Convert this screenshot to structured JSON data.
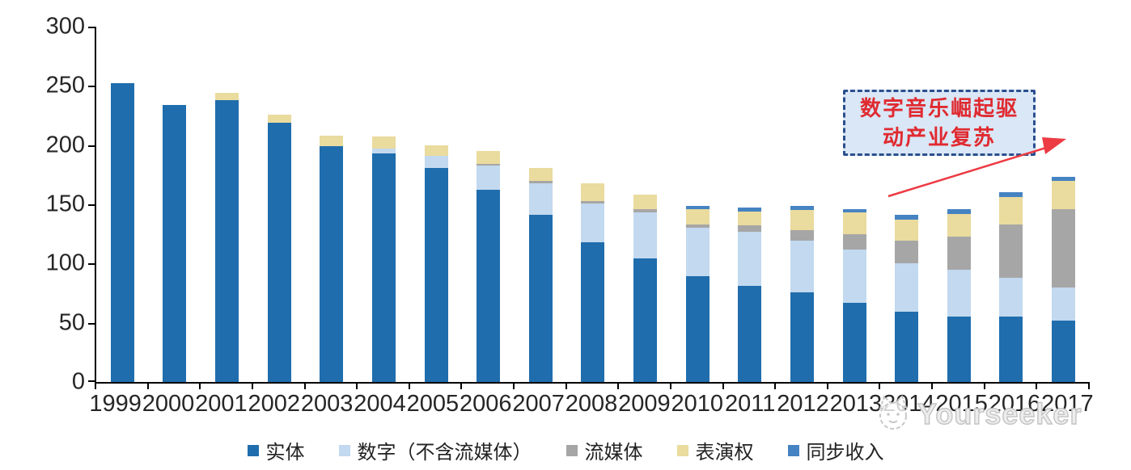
{
  "chart_data": {
    "type": "bar",
    "stacked": true,
    "title": "",
    "xlabel": "",
    "ylabel": "",
    "ylim": [
      0,
      300
    ],
    "grid": false,
    "legend_position": "bottom",
    "y_ticks": [
      300,
      250,
      200,
      150,
      100,
      50,
      0
    ],
    "categories": [
      "1999",
      "2000",
      "2001",
      "2002",
      "2003",
      "2004",
      "2005",
      "2006",
      "2007",
      "2008",
      "2009",
      "2010",
      "2011",
      "2012",
      "2013",
      "2014",
      "2015",
      "2016",
      "2017"
    ],
    "series": [
      {
        "name": "实体",
        "color": "#1F6DAD",
        "values": [
          252,
          234,
          238,
          219,
          199,
          193,
          181,
          162,
          141,
          118,
          104,
          89,
          81,
          76,
          67,
          59,
          55,
          55,
          52
        ]
      },
      {
        "name": "数字（不含流媒体）",
        "color": "#C2D9EF",
        "values": [
          0,
          0,
          0,
          0,
          0,
          4,
          10,
          21,
          27,
          33,
          39,
          41,
          46,
          43,
          45,
          41,
          40,
          33,
          28
        ]
      },
      {
        "name": "流媒体",
        "color": "#A6A6A6",
        "values": [
          0,
          0,
          0,
          0,
          0,
          0,
          0,
          1,
          2,
          2,
          3,
          3,
          5,
          9,
          13,
          19,
          28,
          45,
          66
        ]
      },
      {
        "name": "表演权",
        "color": "#EADB9E",
        "values": [
          0,
          0,
          6,
          7,
          9,
          10,
          9,
          11,
          11,
          15,
          12,
          13,
          12,
          17,
          18,
          18,
          19,
          23,
          24
        ]
      },
      {
        "name": "同步收入",
        "color": "#4583C2",
        "values": [
          0,
          0,
          0,
          0,
          0,
          0,
          0,
          0,
          0,
          0,
          0,
          3,
          3,
          4,
          3,
          4,
          4,
          4,
          3
        ]
      }
    ]
  },
  "annotation": {
    "line1": "数字音乐崛起驱",
    "line2": "动产业复苏",
    "text_color": "#E02A30",
    "box_fill": "#D9E7F6",
    "box_border": "#2B4F8E",
    "arrow_color": "#EC3B43"
  },
  "watermark": {
    "label": "Yourseeker"
  },
  "axis": {
    "color": "#000000",
    "label_color": "#262626"
  }
}
